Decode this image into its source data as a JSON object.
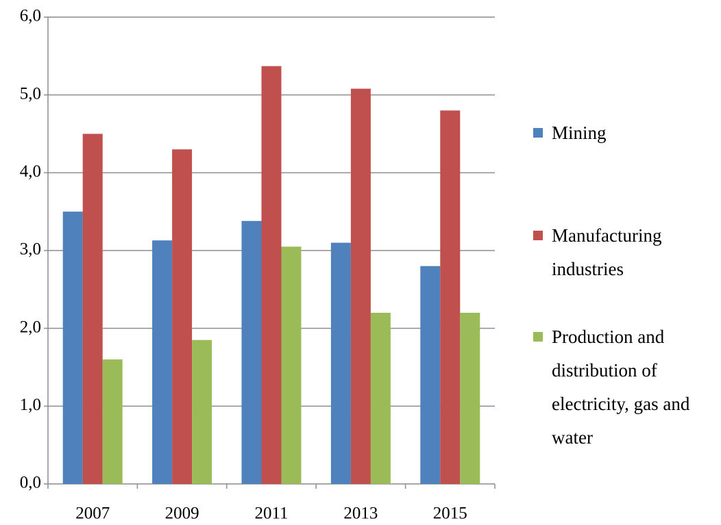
{
  "chart_data": {
    "type": "bar",
    "categories": [
      "2007",
      "2009",
      "2011",
      "2013",
      "2015"
    ],
    "series": [
      {
        "name": "Mining",
        "color": "#4f81bd",
        "values": [
          3.5,
          3.13,
          3.38,
          3.1,
          2.8
        ]
      },
      {
        "name": "Manufacturing industries",
        "color": "#c0504d",
        "values": [
          4.5,
          4.3,
          5.37,
          5.08,
          4.8
        ]
      },
      {
        "name": "Production and distribution of electricity, gas and water",
        "color": "#9bbb59",
        "values": [
          1.6,
          1.85,
          3.05,
          2.2,
          2.2
        ]
      }
    ],
    "ylim": [
      0,
      6
    ],
    "yticks": [
      {
        "value": 0,
        "label": "0,0"
      },
      {
        "value": 1,
        "label": "1,0"
      },
      {
        "value": 2,
        "label": "2,0"
      },
      {
        "value": 3,
        "label": "3,0"
      },
      {
        "value": 4,
        "label": "4,0"
      },
      {
        "value": 5,
        "label": "5,0"
      },
      {
        "value": 6,
        "label": "6,0"
      }
    ],
    "grid": true,
    "legend": "right"
  }
}
